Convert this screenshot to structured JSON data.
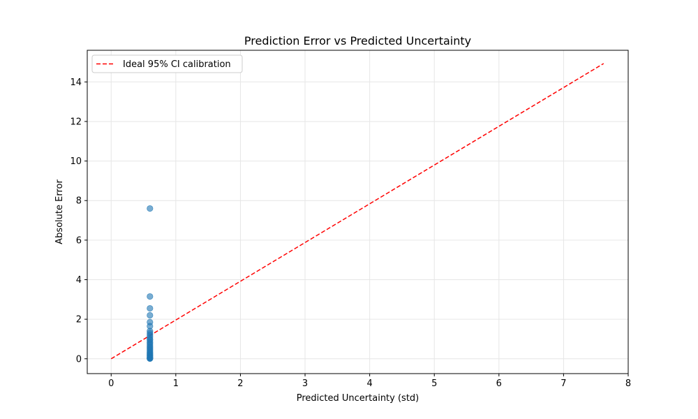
{
  "chart_data": {
    "type": "scatter",
    "title": "Prediction Error vs Predicted Uncertainty",
    "xlabel": "Predicted Uncertainty (std)",
    "ylabel": "Absolute Error",
    "xlim": [
      -0.37,
      8.0
    ],
    "ylim": [
      -0.75,
      15.6
    ],
    "xticks": [
      0,
      1,
      2,
      3,
      4,
      5,
      6,
      7,
      8
    ],
    "yticks": [
      0,
      2,
      4,
      6,
      8,
      10,
      12,
      14
    ],
    "grid": true,
    "legend_position": "top-left",
    "colors": {
      "points": "#1f77b4",
      "ideal_line": "#ff0000",
      "grid": "#e6e6e6"
    },
    "series": [
      {
        "kind": "scatter",
        "x": [
          0.6,
          0.6,
          0.6,
          0.6,
          0.6,
          0.6,
          0.6,
          0.6,
          0.6,
          0.6,
          0.6,
          0.6,
          0.6,
          0.6,
          0.6,
          0.6,
          0.6,
          0.6,
          0.6,
          0.6,
          0.6,
          0.6,
          0.6,
          0.6,
          0.6,
          0.6,
          0.6,
          0.6,
          0.6,
          0.6
        ],
        "y": [
          7.6,
          3.15,
          2.55,
          2.2,
          1.85,
          1.65,
          1.4,
          1.3,
          1.2,
          1.1,
          1.0,
          0.95,
          0.85,
          0.78,
          0.7,
          0.62,
          0.55,
          0.48,
          0.42,
          0.35,
          0.3,
          0.25,
          0.2,
          0.16,
          0.12,
          0.08,
          0.05,
          0.03,
          0.02,
          0.01
        ]
      },
      {
        "kind": "line",
        "name": "Ideal 95% CI calibration",
        "x": [
          0,
          7.62
        ],
        "y": [
          0,
          14.93
        ]
      }
    ]
  }
}
